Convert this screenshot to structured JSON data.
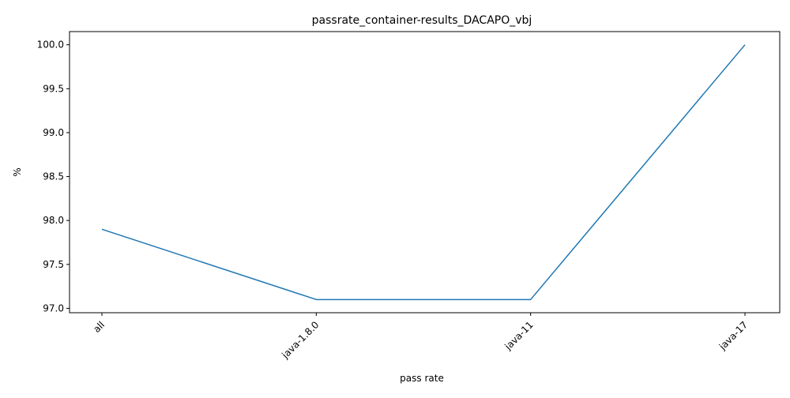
{
  "chart_data": {
    "type": "line",
    "title": "passrate_container-results_DACAPO_vbj",
    "xlabel": "pass rate",
    "ylabel": "%",
    "categories": [
      "all",
      "java-1.8.0",
      "java-11",
      "java-17"
    ],
    "series": [
      {
        "values": [
          97.9,
          97.1,
          97.1,
          100.0
        ]
      }
    ],
    "ylim": [
      96.95,
      100.15
    ],
    "yticks": [
      "97.0",
      "97.5",
      "98.0",
      "98.5",
      "99.0",
      "99.5",
      "100.0"
    ],
    "grid": false,
    "line_color": "#1f77b4"
  }
}
